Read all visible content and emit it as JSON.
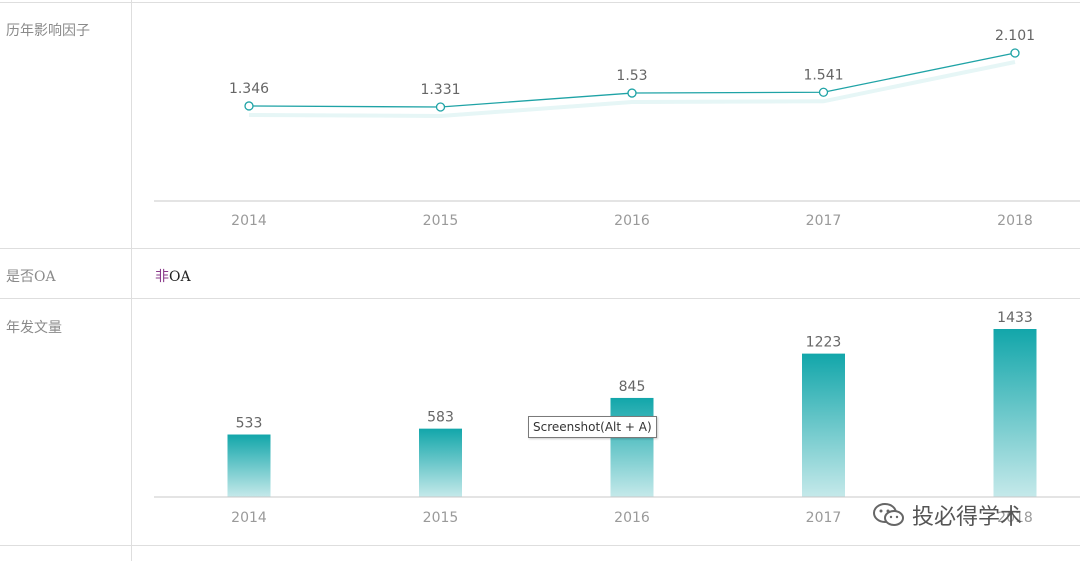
{
  "rows": {
    "impact_factor_label": "历年影响因子",
    "oa_label": "是否OA",
    "oa_value_mark": "非",
    "oa_value_rest": "OA",
    "annual_articles_label": "年发文量"
  },
  "tooltip": "Screenshot(Alt + A)",
  "watermark": "投必得学术",
  "chart_data": [
    {
      "type": "line",
      "categories": [
        "2014",
        "2015",
        "2016",
        "2017",
        "2018"
      ],
      "values": [
        1.346,
        1.331,
        1.53,
        1.541,
        2.101
      ],
      "data_labels": [
        "1.346",
        "1.331",
        "1.53",
        "1.541",
        "2.101"
      ],
      "color": "#1fa3a6"
    },
    {
      "type": "bar",
      "categories": [
        "2014",
        "2015",
        "2016",
        "2017",
        "2018"
      ],
      "values": [
        533,
        583,
        845,
        1223,
        1433
      ],
      "data_labels": [
        "533",
        "583",
        "845",
        "1223",
        "1433"
      ],
      "color": "#12a6aa"
    }
  ]
}
